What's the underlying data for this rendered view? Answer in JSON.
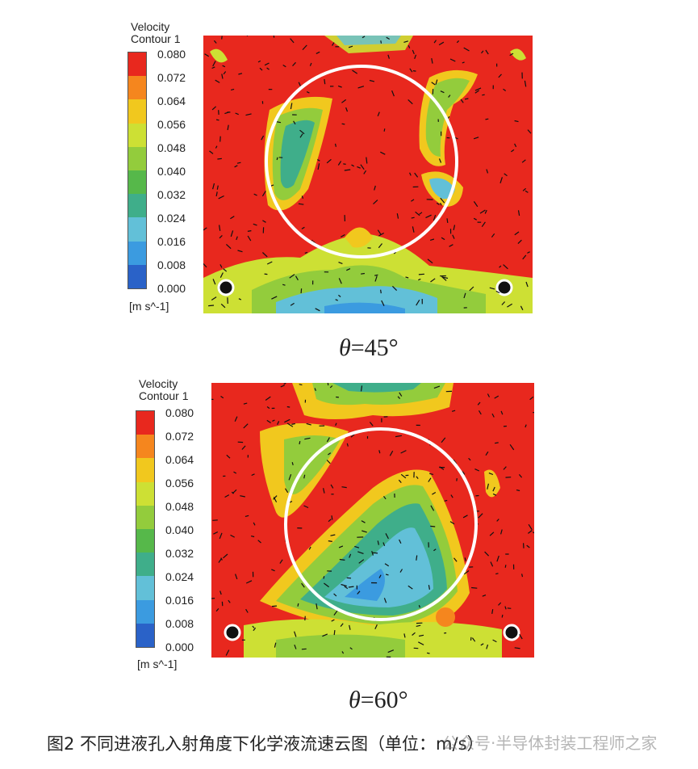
{
  "legend": {
    "title": "Velocity\nContour 1",
    "unit": "[m s^-1]",
    "ticks": [
      "0.080",
      "0.072",
      "0.064",
      "0.056",
      "0.048",
      "0.040",
      "0.032",
      "0.024",
      "0.016",
      "0.008",
      "0.000"
    ],
    "colors": [
      "#e8281e",
      "#f5861e",
      "#f1c81e",
      "#cde034",
      "#93cc3c",
      "#56b84a",
      "#3fae8a",
      "#62c0d8",
      "#3b9be0",
      "#2a62c8",
      "#1e3ca0"
    ]
  },
  "panels": [
    {
      "theta_symbol": "θ",
      "theta_value": "=45°"
    },
    {
      "theta_symbol": "θ",
      "theta_value": "=60°"
    }
  ],
  "caption": "图2  不同进液孔入射角度下化学液流速云图（单位：m/s）",
  "watermark": "公众号·半导体封装工程师之家"
}
